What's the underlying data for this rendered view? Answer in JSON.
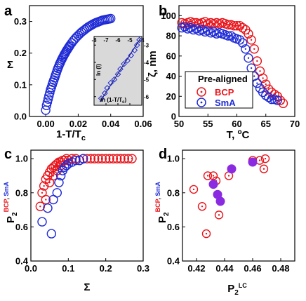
{
  "colors": {
    "red": "#e8141b",
    "blue": "#1f2bd6",
    "purple": "#8a2be2",
    "inset_bg": "#d9d9d9",
    "fit_line": "#1a1a6e"
  },
  "chart_data": [
    {
      "panel": "a",
      "type": "scatter",
      "xlabel": "1-T/Tc",
      "ylabel": "Σ",
      "xlim": [
        -0.01,
        0.06
      ],
      "ylim": [
        0.0,
        0.35
      ],
      "xticks": [
        "0.00",
        "0.02",
        "0.04",
        "0.06"
      ],
      "yticks": [
        "0.0",
        "0.1",
        "0.2",
        "0.3"
      ],
      "series": [
        {
          "color": "blue",
          "marker": "open-circle",
          "x": [
            0.0,
            0.0005,
            0.001,
            0.0015,
            0.002,
            0.0025,
            0.003,
            0.0035,
            0.004,
            0.0045,
            0.005,
            0.0055,
            0.006,
            0.0065,
            0.007,
            0.0075,
            0.008,
            0.0085,
            0.009,
            0.0095,
            0.01,
            0.0105,
            0.011,
            0.0115,
            0.012,
            0.0125,
            0.013,
            0.0135,
            0.014,
            0.0145,
            0.015,
            0.016,
            0.017,
            0.018,
            0.019,
            0.02,
            0.021,
            0.022,
            0.023,
            0.024,
            0.025,
            0.026,
            0.027,
            0.028,
            0.029,
            0.03,
            0.031,
            0.032,
            0.033,
            0.034,
            0.035,
            0.036,
            0.037,
            0.038,
            0.039,
            0.04
          ],
          "y": [
            0.02,
            0.035,
            0.045,
            0.055,
            0.065,
            0.075,
            0.085,
            0.092,
            0.1,
            0.108,
            0.115,
            0.122,
            0.13,
            0.137,
            0.145,
            0.152,
            0.158,
            0.165,
            0.17,
            0.176,
            0.181,
            0.186,
            0.191,
            0.196,
            0.2,
            0.205,
            0.209,
            0.213,
            0.217,
            0.221,
            0.225,
            0.232,
            0.239,
            0.245,
            0.251,
            0.256,
            0.261,
            0.266,
            0.27,
            0.274,
            0.278,
            0.282,
            0.285,
            0.288,
            0.291,
            0.294,
            0.296,
            0.298,
            0.3,
            0.302,
            0.304,
            0.305,
            0.306,
            0.307,
            0.308,
            0.309
          ]
        }
      ],
      "inset": {
        "xlabel": "ln (1-T/Tc)",
        "ylabel": "ln (l)",
        "xlim": [
          -8,
          -4
        ],
        "ylim": [
          -6.5,
          -2.5
        ],
        "xticks": [
          "-8",
          "-7",
          "-6",
          "-5",
          "-4"
        ],
        "yticks": [
          "-6",
          "-5",
          "-4",
          "-3"
        ],
        "x": [
          -7.4,
          -7.1,
          -6.9,
          -6.6,
          -6.3,
          -6.0,
          -5.8,
          -5.5,
          -5.2,
          -4.9,
          -4.6,
          -4.4,
          -4.2
        ],
        "y": [
          -6.1,
          -5.8,
          -5.5,
          -5.2,
          -5.0,
          -4.7,
          -4.4,
          -4.1,
          -3.9,
          -3.6,
          -3.3,
          -3.0,
          -2.7
        ],
        "fit": [
          [
            -7.5,
            -6.3
          ],
          [
            -4.1,
            -2.6
          ]
        ]
      }
    },
    {
      "panel": "b",
      "type": "scatter",
      "xlabel": "T, °C",
      "ylabel": "ζ, nm",
      "xlim": [
        50,
        70
      ],
      "ylim": [
        0,
        110
      ],
      "xticks": [
        "50",
        "55",
        "60",
        "65",
        "70"
      ],
      "yticks": [
        "0",
        "20",
        "40",
        "60",
        "80",
        "100"
      ],
      "legend": {
        "title": "Pre-aligned",
        "entries": [
          "BCP",
          "SmA"
        ]
      },
      "series": [
        {
          "name": "BCP",
          "color": "red",
          "marker": "open-circle-dot",
          "x": [
            50.5,
            51,
            51.5,
            52,
            52.5,
            53,
            53.5,
            54,
            54.5,
            55,
            55.5,
            56,
            56.5,
            57,
            57.5,
            58,
            58.5,
            59,
            59.5,
            60,
            60.5,
            61,
            61.5,
            62,
            62.5,
            63,
            63.5,
            64,
            64.5,
            65,
            65.5,
            66,
            66.5,
            67,
            67.5,
            68
          ],
          "y": [
            93,
            92,
            93,
            94,
            93,
            93,
            92,
            93,
            94,
            92,
            93,
            92,
            93,
            92,
            93,
            92,
            91,
            91,
            90,
            90,
            90,
            88,
            86,
            82,
            76,
            67,
            55,
            45,
            38,
            32,
            27,
            24,
            22,
            20,
            16,
            13
          ]
        },
        {
          "name": "SmA",
          "color": "blue",
          "marker": "open-circle-dot",
          "x": [
            50.5,
            51,
            51.5,
            52,
            52.5,
            53,
            53.5,
            54,
            54.5,
            55,
            55.5,
            56,
            56.5,
            57,
            57.5,
            58,
            58.5,
            59,
            59.5,
            60,
            60.5,
            61,
            61.5,
            62,
            62.5,
            63,
            63.5,
            64,
            64.5,
            65,
            65.5,
            66,
            66.5,
            67
          ],
          "y": [
            88,
            89,
            87,
            88,
            86,
            87,
            85,
            86,
            84,
            85,
            83,
            84,
            82,
            83,
            82,
            81,
            80,
            80,
            78,
            77,
            76,
            73,
            67,
            58,
            48,
            40,
            33,
            28,
            24,
            21,
            19,
            17,
            17,
            16
          ]
        }
      ]
    },
    {
      "panel": "c",
      "type": "scatter",
      "xlabel": "Σ",
      "ylabel": "P2 BCP, SmA",
      "xlim": [
        0.0,
        0.3
      ],
      "ylim": [
        0.4,
        1.05
      ],
      "xticks": [
        "0.0",
        "0.1",
        "0.2",
        "0.3"
      ],
      "yticks": [
        "0.4",
        "0.6",
        "0.8",
        "1.0"
      ],
      "series": [
        {
          "name": "BCP",
          "color": "red",
          "marker": "open-circle-dot",
          "x": [
            0.025,
            0.03,
            0.035,
            0.04,
            0.045,
            0.05,
            0.055,
            0.06,
            0.065,
            0.07,
            0.075,
            0.08,
            0.085,
            0.09,
            0.095,
            0.1,
            0.11,
            0.12,
            0.13,
            0.14,
            0.15,
            0.16,
            0.17,
            0.18,
            0.19,
            0.2,
            0.21,
            0.22,
            0.23,
            0.24,
            0.25,
            0.26,
            0.27,
            0.04,
            0.05,
            0.06,
            0.07,
            0.08
          ],
          "y": [
            0.72,
            0.8,
            0.84,
            0.88,
            0.9,
            0.92,
            0.94,
            0.95,
            0.96,
            0.97,
            0.98,
            0.98,
            0.99,
            0.99,
            1.0,
            0.99,
            1.0,
            1.0,
            0.99,
            1.0,
            1.0,
            1.0,
            1.0,
            1.0,
            1.0,
            1.0,
            1.0,
            1.0,
            1.0,
            1.0,
            1.0,
            1.0,
            1.0,
            0.76,
            0.86,
            0.9,
            0.93,
            0.96
          ]
        },
        {
          "name": "SmA",
          "color": "blue",
          "marker": "open-circle",
          "x": [
            0.03,
            0.045,
            0.055,
            0.06,
            0.07,
            0.075,
            0.08,
            0.085,
            0.09,
            0.095,
            0.1,
            0.11,
            0.12,
            0.13,
            0.14
          ],
          "y": [
            0.63,
            0.71,
            0.56,
            0.76,
            0.8,
            0.86,
            0.9,
            0.93,
            0.95,
            0.96,
            0.97,
            0.98,
            0.99,
            0.99,
            1.0
          ]
        }
      ]
    },
    {
      "panel": "d",
      "type": "scatter",
      "xlabel": "P2 LC",
      "ylabel": "P2 BCP, SmA",
      "xlim": [
        0.41,
        0.49
      ],
      "ylim": [
        0.4,
        1.05
      ],
      "xticks": [
        "0.42",
        "0.44",
        "0.46",
        "0.48"
      ],
      "yticks": [
        "0.4",
        "0.6",
        "0.8",
        "1.0"
      ],
      "series": [
        {
          "name": "BCP",
          "color": "red",
          "marker": "open-circle-dot",
          "x": [
            0.418,
            0.424,
            0.427,
            0.428,
            0.432,
            0.436,
            0.443,
            0.46,
            0.465,
            0.469,
            0.468,
            0.434
          ],
          "y": [
            0.82,
            0.72,
            0.56,
            0.9,
            0.9,
            0.67,
            0.9,
            0.99,
            0.99,
            1.0,
            0.94,
            0.87
          ]
        },
        {
          "name": "SmA",
          "color": "purple",
          "marker": "filled-circle",
          "x": [
            0.432,
            0.435,
            0.437,
            0.445,
            0.46
          ],
          "y": [
            0.85,
            0.79,
            0.75,
            0.94,
            0.98
          ]
        }
      ]
    }
  ],
  "labels": {
    "panel_a": "a",
    "panel_b": "b",
    "panel_c": "c",
    "panel_d": "d",
    "a_xlabel_main": "1-T/T",
    "a_xlabel_sub": "c",
    "a_ylabel": "Σ",
    "a_inset_xlabel": "ln (1-T/T",
    "a_inset_xlabel_sub": "c",
    "a_inset_xlabel_end": ")",
    "a_inset_ylabel": "ln (l)",
    "b_xlabel": "T, ",
    "b_xlabel_deg": "o",
    "b_xlabel_c": "C",
    "b_ylabel": "ζ, nm",
    "b_legend_title": "Pre-aligned",
    "b_legend_bcp": "BCP",
    "b_legend_sma": "SmA",
    "c_xlabel": "Σ",
    "y_p": "P",
    "y_sub2": "2",
    "y_sup_bcp": "BCP",
    "y_sup_comma": ", ",
    "y_sup_sma": "SmA",
    "d_xlabel_p": "P",
    "d_xlabel_sub": "2",
    "d_xlabel_sup": "LC"
  }
}
